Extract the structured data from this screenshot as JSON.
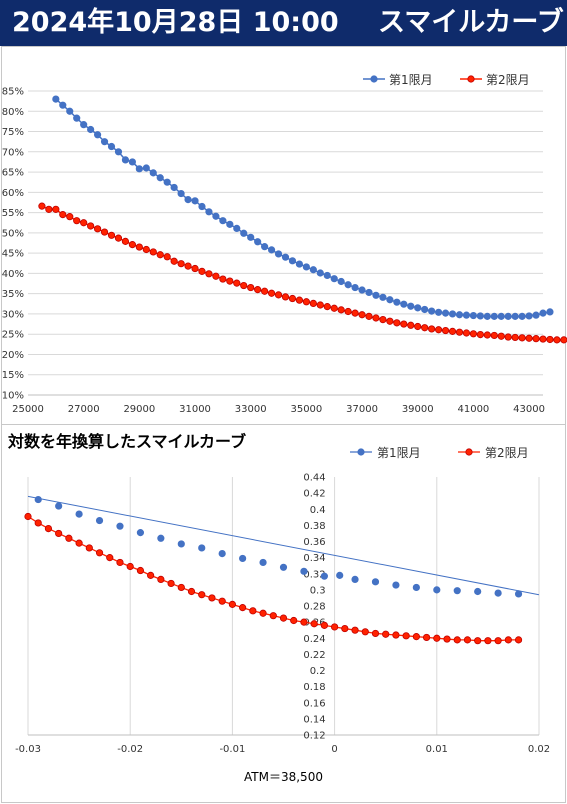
{
  "header": {
    "date_time": "2024年10月28日 10:00",
    "title": "スマイルカーブ"
  },
  "colors": {
    "series1": "#4472c4",
    "series2": "#ff2200",
    "series2_edge": "#c00000",
    "grid": "#d9d9d9",
    "header_bg": "#0f2b6b"
  },
  "chart_data": [
    {
      "type": "line",
      "title": "",
      "xlabel": "",
      "ylabel": "",
      "xlim": [
        25000,
        43500
      ],
      "ylim": [
        0.1,
        0.85
      ],
      "x_ticks": [
        25000,
        27000,
        29000,
        31000,
        33000,
        35000,
        37000,
        39000,
        41000,
        43000
      ],
      "x_tick_labels": [
        "25000",
        "27000",
        "29000",
        "31000",
        "33000",
        "35000",
        "37000",
        "39000",
        "41000",
        "43000"
      ],
      "y_ticks": [
        0.1,
        0.15,
        0.2,
        0.25,
        0.3,
        0.35,
        0.4,
        0.45,
        0.5,
        0.55,
        0.6,
        0.65,
        0.7,
        0.75,
        0.8,
        0.85
      ],
      "y_tick_labels": [
        "10%",
        "15%",
        "20%",
        "25%",
        "30%",
        "35%",
        "40%",
        "45%",
        "50%",
        "55%",
        "60%",
        "65%",
        "70%",
        "75%",
        "80%",
        "85%"
      ],
      "grid": "horizontal",
      "legend_position": "top-right",
      "series": [
        {
          "name": "第1限月",
          "x_start": 26000,
          "x_step": 250,
          "y": [
            0.83,
            0.815,
            0.8,
            0.783,
            0.767,
            0.755,
            0.742,
            0.725,
            0.713,
            0.7,
            0.68,
            0.675,
            0.658,
            0.66,
            0.648,
            0.636,
            0.625,
            0.612,
            0.597,
            0.582,
            0.579,
            0.565,
            0.552,
            0.541,
            0.53,
            0.521,
            0.511,
            0.499,
            0.489,
            0.478,
            0.466,
            0.458,
            0.448,
            0.44,
            0.431,
            0.423,
            0.416,
            0.409,
            0.401,
            0.395,
            0.387,
            0.38,
            0.372,
            0.365,
            0.359,
            0.353,
            0.346,
            0.341,
            0.335,
            0.329,
            0.324,
            0.319,
            0.315,
            0.311,
            0.307,
            0.304,
            0.302,
            0.3,
            0.298,
            0.297,
            0.296,
            0.295,
            0.294,
            0.294,
            0.294,
            0.294,
            0.294,
            0.294,
            0.295,
            0.297,
            0.302,
            0.305
          ]
        },
        {
          "name": "第2限月",
          "x_start": 25500,
          "x_step": 250,
          "y": [
            0.566,
            0.558,
            0.558,
            0.545,
            0.54,
            0.53,
            0.525,
            0.517,
            0.51,
            0.502,
            0.494,
            0.487,
            0.479,
            0.471,
            0.465,
            0.459,
            0.453,
            0.446,
            0.441,
            0.43,
            0.424,
            0.418,
            0.412,
            0.405,
            0.399,
            0.393,
            0.386,
            0.381,
            0.376,
            0.37,
            0.365,
            0.36,
            0.356,
            0.351,
            0.347,
            0.342,
            0.338,
            0.334,
            0.33,
            0.326,
            0.322,
            0.318,
            0.314,
            0.31,
            0.306,
            0.302,
            0.298,
            0.294,
            0.29,
            0.286,
            0.282,
            0.278,
            0.275,
            0.272,
            0.269,
            0.266,
            0.263,
            0.261,
            0.259,
            0.257,
            0.255,
            0.253,
            0.251,
            0.249,
            0.248,
            0.247,
            0.245,
            0.243,
            0.242,
            0.241,
            0.24,
            0.239,
            0.238,
            0.237,
            0.236,
            0.236,
            0.236,
            0.236,
            0.237,
            0.238,
            0.238,
            0.237,
            0.235
          ]
        }
      ]
    },
    {
      "type": "line",
      "title": "対数を年換算したスマイルカーブ",
      "xlabel": "ATM＝38,500",
      "ylabel": "",
      "xlim": [
        -0.03,
        0.02
      ],
      "ylim": [
        0.12,
        0.44
      ],
      "x_ticks": [
        -0.03,
        -0.02,
        -0.01,
        0,
        0.01,
        0.02
      ],
      "x_tick_labels": [
        "-0.03",
        "-0.02",
        "-0.01",
        "0",
        "0.01",
        "0.02"
      ],
      "y_ticks": [
        0.12,
        0.14,
        0.16,
        0.18,
        0.2,
        0.22,
        0.24,
        0.26,
        0.28,
        0.3,
        0.32,
        0.34,
        0.36,
        0.38,
        0.4,
        0.42,
        0.44
      ],
      "y_tick_labels": [
        "0.12",
        "0.14",
        "0.16",
        "0.18",
        "0.2",
        "0.22",
        "0.24",
        "0.26",
        "0.28",
        "0.3",
        "0.32",
        "0.34",
        "0.36",
        "0.38",
        "0.4",
        "0.42",
        "0.44"
      ],
      "grid": "vertical",
      "legend_position": "top-right",
      "series": [
        {
          "name": "第1限月",
          "x": [
            -0.029,
            -0.027,
            -0.025,
            -0.023,
            -0.021,
            -0.019,
            -0.017,
            -0.015,
            -0.013,
            -0.011,
            -0.009,
            -0.007,
            -0.005,
            -0.003,
            -0.001,
            0.0005,
            0.002,
            0.004,
            0.006,
            0.008,
            0.01,
            0.012,
            0.014,
            0.016,
            0.018
          ],
          "y": [
            0.412,
            0.404,
            0.394,
            0.386,
            0.379,
            0.371,
            0.364,
            0.357,
            0.352,
            0.345,
            0.339,
            0.334,
            0.328,
            0.323,
            0.317,
            0.318,
            0.313,
            0.31,
            0.306,
            0.303,
            0.3,
            0.299,
            0.298,
            0.296,
            0.295
          ],
          "trend": {
            "x": [
              -0.03,
              0.02
            ],
            "y": [
              0.416,
              0.294
            ]
          }
        },
        {
          "name": "第2限月",
          "x": [
            -0.03,
            -0.029,
            -0.028,
            -0.027,
            -0.026,
            -0.025,
            -0.024,
            -0.023,
            -0.022,
            -0.021,
            -0.02,
            -0.019,
            -0.018,
            -0.017,
            -0.016,
            -0.015,
            -0.014,
            -0.013,
            -0.012,
            -0.011,
            -0.01,
            -0.009,
            -0.008,
            -0.007,
            -0.006,
            -0.005,
            -0.004,
            -0.003,
            -0.002,
            -0.001,
            0.0,
            0.001,
            0.002,
            0.003,
            0.004,
            0.005,
            0.006,
            0.007,
            0.008,
            0.009,
            0.01,
            0.011,
            0.012,
            0.013,
            0.014,
            0.015,
            0.016,
            0.017,
            0.018
          ],
          "y": [
            0.391,
            0.383,
            0.376,
            0.37,
            0.364,
            0.358,
            0.352,
            0.346,
            0.34,
            0.334,
            0.329,
            0.324,
            0.318,
            0.313,
            0.308,
            0.303,
            0.298,
            0.294,
            0.29,
            0.286,
            0.282,
            0.278,
            0.274,
            0.271,
            0.268,
            0.265,
            0.262,
            0.26,
            0.258,
            0.256,
            0.254,
            0.252,
            0.25,
            0.248,
            0.246,
            0.245,
            0.244,
            0.243,
            0.242,
            0.241,
            0.24,
            0.239,
            0.238,
            0.238,
            0.237,
            0.237,
            0.237,
            0.238,
            0.238
          ]
        }
      ]
    }
  ]
}
